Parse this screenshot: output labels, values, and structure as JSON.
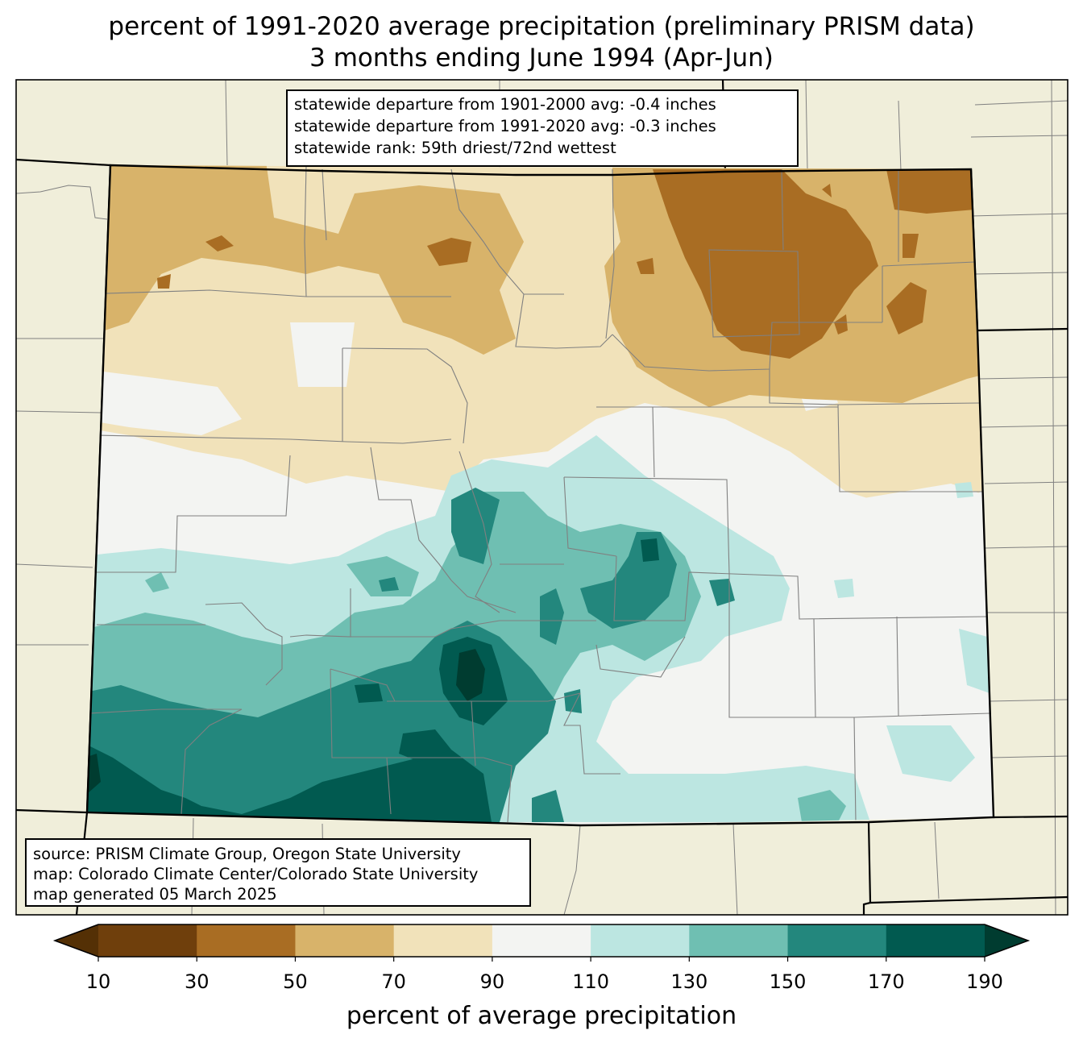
{
  "title": {
    "line1": "percent of 1991-2020 average precipitation (preliminary PRISM data)",
    "line2": "3 months ending June 1994 (Apr-Jun)"
  },
  "stats": {
    "line1": "statewide departure from 1901-2000 avg: -0.4 inches",
    "line2": "statewide departure from 1991-2020 avg: -0.3 inches",
    "line3": "statewide rank: 59th driest/72nd wettest"
  },
  "source": {
    "line1": "source: PRISM Climate Group, Oregon State University",
    "line2": "map: Colorado Climate Center/Colorado State University",
    "line3": "map generated 05 March 2025"
  },
  "colorbar": {
    "label": "percent of average precipitation",
    "ticks": [
      "10",
      "30",
      "50",
      "70",
      "90",
      "110",
      "130",
      "150",
      "170",
      "190"
    ],
    "under_color": "#543005",
    "over_color": "#003c30",
    "bin_colors": [
      "#6f3f0c",
      "#a96d23",
      "#d8b36a",
      "#f1e2ba",
      "#f3f4f2",
      "#bce6e1",
      "#6fbfb2",
      "#23877d",
      "#015a50"
    ]
  },
  "map": {
    "region": "Colorado",
    "state_border_color": "#000000",
    "county_line_color": "#808080",
    "background_land_color": "#f0eeda"
  }
}
